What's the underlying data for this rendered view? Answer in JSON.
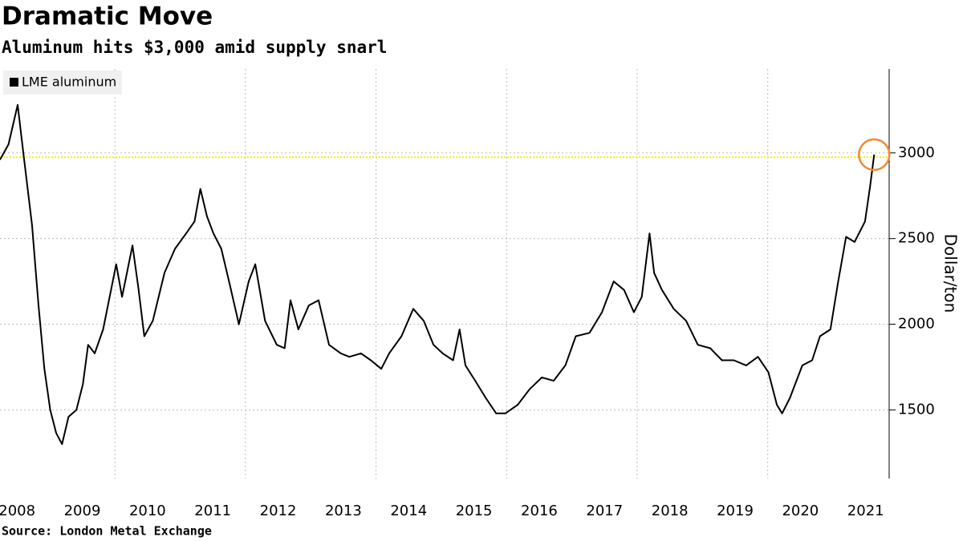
{
  "chart_data": {
    "type": "line",
    "title": "Dramatic Move",
    "subtitle": "Aluminum hits $3,000 amid supply snarl",
    "y_label": "Dollar/ton",
    "source": "Source: London Metal Exchange",
    "x": [
      2008.24,
      2008.37,
      2008.51,
      2008.61,
      2008.73,
      2008.83,
      2008.92,
      2009.01,
      2009.1,
      2009.19,
      2009.29,
      2009.41,
      2009.51,
      2009.59,
      2009.69,
      2009.82,
      2010.02,
      2010.11,
      2010.27,
      2010.36,
      2010.45,
      2010.58,
      2010.76,
      2010.92,
      2011.09,
      2011.22,
      2011.31,
      2011.41,
      2011.51,
      2011.63,
      2011.76,
      2011.9,
      2012.05,
      2012.15,
      2012.3,
      2012.48,
      2012.6,
      2012.69,
      2012.81,
      2012.97,
      2013.12,
      2013.28,
      2013.46,
      2013.59,
      2013.77,
      2013.92,
      2014.08,
      2014.2,
      2014.39,
      2014.57,
      2014.73,
      2014.88,
      2015.02,
      2015.18,
      2015.28,
      2015.37,
      2015.52,
      2015.68,
      2015.84,
      2015.98,
      2016.17,
      2016.35,
      2016.54,
      2016.72,
      2016.9,
      2017.06,
      2017.27,
      2017.46,
      2017.64,
      2017.8,
      2017.95,
      2018.07,
      2018.19,
      2018.26,
      2018.38,
      2018.56,
      2018.75,
      2018.93,
      2019.12,
      2019.3,
      2019.48,
      2019.67,
      2019.85,
      2020.01,
      2020.14,
      2020.22,
      2020.34,
      2020.53,
      2020.68,
      2020.8,
      2020.96,
      2021.08,
      2021.2,
      2021.33,
      2021.49,
      2021.57,
      2021.63
    ],
    "series": [
      {
        "name": "LME aluminum",
        "color": "#000000",
        "values": [
          2960,
          3050,
          3280,
          2960,
          2580,
          2110,
          1740,
          1500,
          1365,
          1300,
          1460,
          1500,
          1650,
          1880,
          1830,
          1970,
          2350,
          2160,
          2460,
          2210,
          1930,
          2020,
          2300,
          2440,
          2530,
          2600,
          2790,
          2630,
          2530,
          2440,
          2230,
          2000,
          2250,
          2350,
          2020,
          1880,
          1860,
          2140,
          1970,
          2110,
          2140,
          1880,
          1830,
          1810,
          1830,
          1790,
          1740,
          1830,
          1930,
          2090,
          2020,
          1880,
          1830,
          1790,
          1970,
          1760,
          1670,
          1570,
          1480,
          1480,
          1530,
          1620,
          1690,
          1670,
          1760,
          1930,
          1950,
          2070,
          2250,
          2200,
          2070,
          2160,
          2530,
          2300,
          2200,
          2090,
          2020,
          1880,
          1860,
          1790,
          1790,
          1760,
          1810,
          1720,
          1530,
          1480,
          1570,
          1760,
          1790,
          1930,
          1970,
          2250,
          2510,
          2480,
          2600,
          2810,
          2990
        ]
      }
    ],
    "xlim": [
      2008.24,
      2021.86
    ],
    "xticks": [
      {
        "value": 2008.5,
        "label": "2008"
      },
      {
        "value": 2009.5,
        "label": "2009"
      },
      {
        "value": 2010.5,
        "label": "2010"
      },
      {
        "value": 2011.5,
        "label": "2011"
      },
      {
        "value": 2012.5,
        "label": "2012"
      },
      {
        "value": 2013.5,
        "label": "2013"
      },
      {
        "value": 2014.5,
        "label": "2014"
      },
      {
        "value": 2015.5,
        "label": "2015"
      },
      {
        "value": 2016.5,
        "label": "2016"
      },
      {
        "value": 2017.5,
        "label": "2017"
      },
      {
        "value": 2018.5,
        "label": "2018"
      },
      {
        "value": 2019.5,
        "label": "2019"
      },
      {
        "value": 2020.5,
        "label": "2020"
      },
      {
        "value": 2021.5,
        "label": "2021"
      }
    ],
    "xgrid": [
      2010,
      2012,
      2014,
      2016,
      2018,
      2020
    ],
    "ylim": [
      1100,
      3490
    ],
    "yticks": [
      1500,
      2000,
      2500,
      3000
    ],
    "grid": true,
    "reference_line": {
      "value": 2975,
      "color": "#f2f200"
    },
    "highlight_color": "#f08a30",
    "legend": "top-left"
  }
}
